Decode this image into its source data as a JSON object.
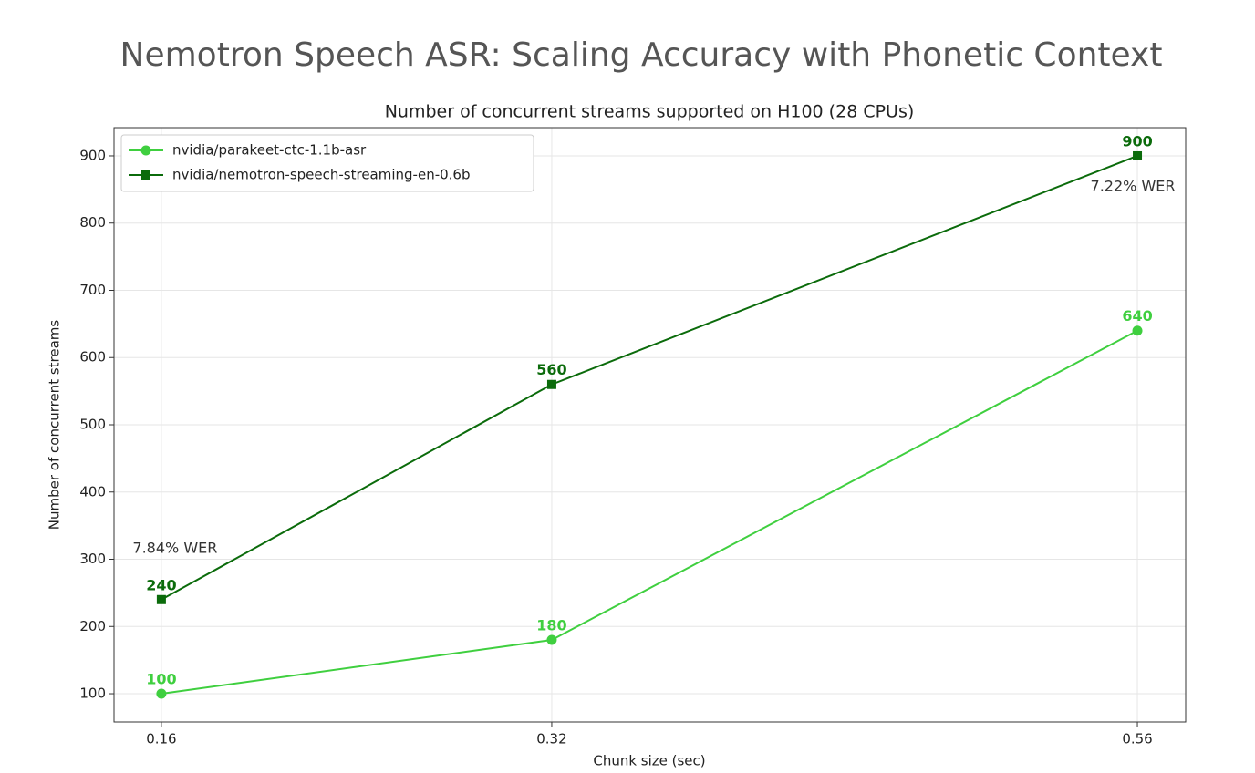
{
  "page_title": "Nemotron Speech ASR: Scaling Accuracy with Phonetic Context",
  "chart_data": {
    "type": "line",
    "title": "Number of concurrent streams supported on H100 (28 CPUs)",
    "x_label": "Chunk size (sec)",
    "y_label": "Number of concurrent streams",
    "x": [
      0.16,
      0.32,
      0.56
    ],
    "series": [
      {
        "name": "nvidia/parakeet-ctc-1.1b-asr",
        "color": "#3fcf3f",
        "marker": "circle",
        "values": [
          100,
          180,
          640
        ]
      },
      {
        "name": "nvidia/nemotron-speech-streaming-en-0.6b",
        "color": "#0b6b0b",
        "marker": "square",
        "values": [
          240,
          560,
          900
        ]
      }
    ],
    "annotations": [
      "7.84% WER",
      "7.22% WER"
    ],
    "xlim": [
      0.1406,
      0.5798
    ],
    "ylim": [
      58,
      942
    ],
    "xticks": [
      0.16,
      0.32,
      0.56
    ],
    "yticks": [
      100,
      200,
      300,
      400,
      500,
      600,
      700,
      800,
      900
    ],
    "grid": true,
    "legend": "upper-left"
  }
}
